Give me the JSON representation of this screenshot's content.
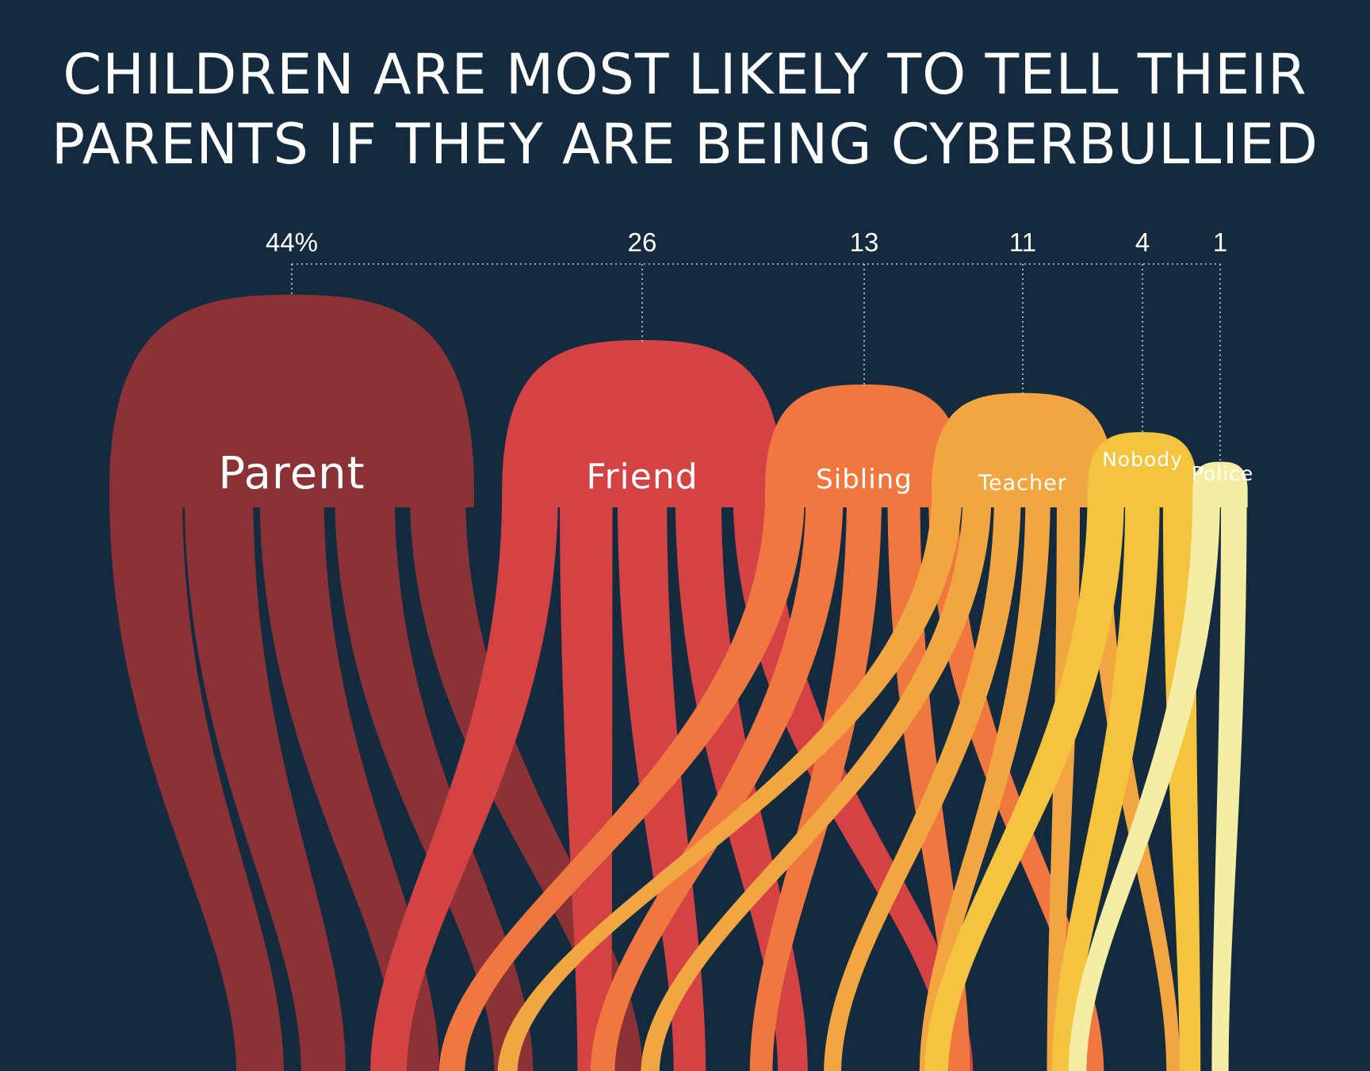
{
  "chart_data": {
    "type": "bar",
    "title_lines": [
      "CHILDREN ARE MOST LIKELY TO TELL THEIR",
      "PARENTS IF THEY ARE BEING CYBERBULLIED"
    ],
    "categories": [
      "Parent",
      "Friend",
      "Sibling",
      "Teacher",
      "Nobody",
      "Police"
    ],
    "values": [
      44,
      26,
      13,
      11,
      4,
      1
    ],
    "value_labels": [
      "44%",
      "26",
      "13",
      "11",
      "4",
      "1"
    ],
    "colors": [
      "#8b3236",
      "#d44243",
      "#f07840",
      "#f2a641",
      "#f4c43f",
      "#f6eda4"
    ],
    "background": "#142b3f"
  }
}
